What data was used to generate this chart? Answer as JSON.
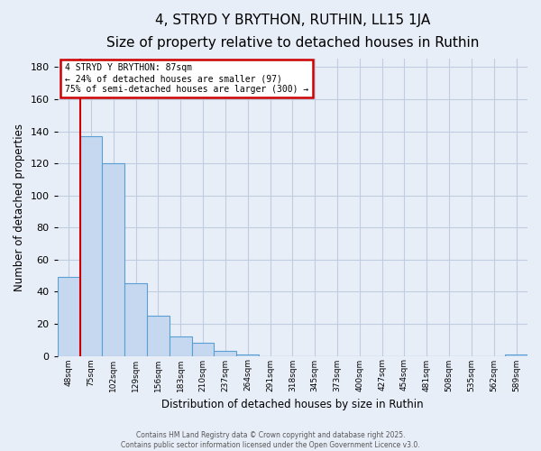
{
  "title": "4, STRYD Y BRYTHON, RUTHIN, LL15 1JA",
  "subtitle": "Size of property relative to detached houses in Ruthin",
  "xlabel": "Distribution of detached houses by size in Ruthin",
  "ylabel": "Number of detached properties",
  "bar_values": [
    49,
    137,
    120,
    45,
    25,
    12,
    8,
    3,
    1,
    0,
    0,
    0,
    0,
    0,
    0,
    0,
    0,
    0,
    0,
    0,
    1
  ],
  "bin_labels": [
    "48sqm",
    "75sqm",
    "102sqm",
    "129sqm",
    "156sqm",
    "183sqm",
    "210sqm",
    "237sqm",
    "264sqm",
    "291sqm",
    "318sqm",
    "345sqm",
    "373sqm",
    "400sqm",
    "427sqm",
    "454sqm",
    "481sqm",
    "508sqm",
    "535sqm",
    "562sqm",
    "589sqm"
  ],
  "bar_color": "#c5d8f0",
  "bar_edge_color": "#5a9fd4",
  "ylim": [
    0,
    185
  ],
  "yticks": [
    0,
    20,
    40,
    60,
    80,
    100,
    120,
    140,
    160,
    180
  ],
  "vline_color": "#cc0000",
  "vline_x_index": 0.5,
  "annotation_title": "4 STRYD Y BRYTHON: 87sqm",
  "annotation_line1": "← 24% of detached houses are smaller (97)",
  "annotation_line2": "75% of semi-detached houses are larger (300) →",
  "annotation_box_color": "#cc0000",
  "footer_line1": "Contains HM Land Registry data © Crown copyright and database right 2025.",
  "footer_line2": "Contains public sector information licensed under the Open Government Licence v3.0.",
  "background_color": "#e8eef8",
  "grid_color": "#c0cce0",
  "title_fontsize": 11,
  "subtitle_fontsize": 9.5
}
